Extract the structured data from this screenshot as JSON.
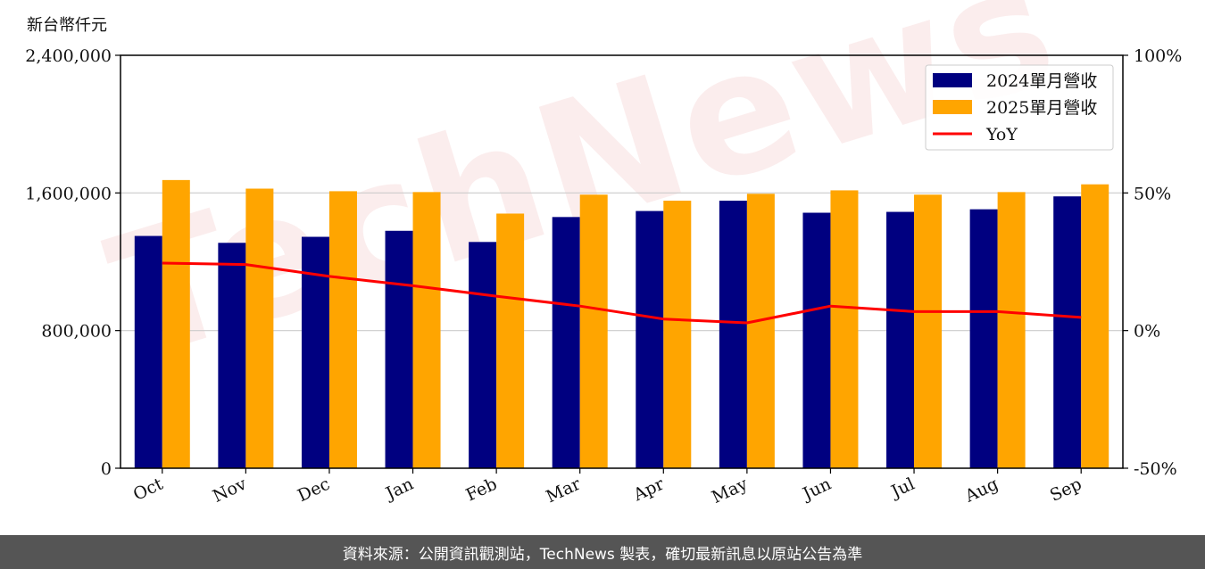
{
  "watermark": "TechNews",
  "footer": {
    "text": "資料來源：公開資訊觀測站，TechNews 製表，確切最新訊息以原站公告為準",
    "background": "#555555"
  },
  "colors": {
    "series_2024": "#000080",
    "series_2025": "#FFA500",
    "yoy_line": "#FF0000",
    "grid": "#cccccc"
  },
  "chart_data": {
    "type": "bar",
    "title": "",
    "xlabel": "",
    "ylabel": "新台幣仟元",
    "categories": [
      "Oct",
      "Nov",
      "Dec",
      "Jan",
      "Feb",
      "Mar",
      "Apr",
      "May",
      "Jun",
      "Jul",
      "Aug",
      "Sep"
    ],
    "series": [
      {
        "name": "2024單月營收",
        "type": "bar",
        "axis": "left",
        "values": [
          1350000,
          1310000,
          1345000,
          1380000,
          1315000,
          1460000,
          1495000,
          1555000,
          1485000,
          1490000,
          1505000,
          1580000
        ]
      },
      {
        "name": "2025單月營收",
        "type": "bar",
        "axis": "left",
        "values": [
          1675000,
          1625000,
          1610000,
          1605000,
          1480000,
          1590000,
          1555000,
          1595000,
          1615000,
          1590000,
          1605000,
          1650000
        ]
      },
      {
        "name": "YoY",
        "type": "line",
        "axis": "right",
        "values": [
          24.5,
          24.0,
          19.7,
          16.3,
          12.5,
          8.9,
          4.2,
          2.8,
          8.9,
          6.9,
          6.9,
          4.8
        ]
      }
    ],
    "ylim": [
      0,
      2400000
    ],
    "yticks": [
      "0",
      "800,000",
      "1,600,000",
      "2,400,000"
    ],
    "ytick_values": [
      0,
      800000,
      1600000,
      2400000
    ],
    "y2lim": [
      -50,
      100
    ],
    "y2ticks": [
      "-50%",
      "0%",
      "50%",
      "100%"
    ],
    "y2tick_values": [
      -50,
      0,
      50,
      100
    ],
    "grid": true,
    "legend_position": "top-right"
  }
}
